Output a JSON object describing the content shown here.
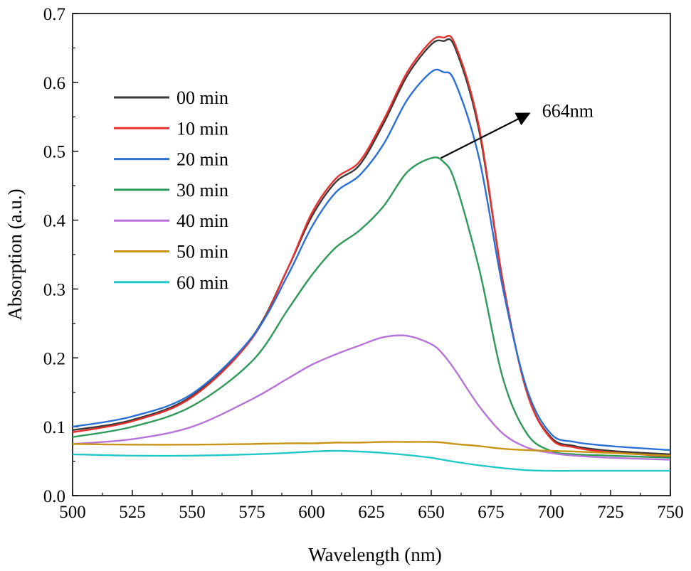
{
  "chart_data": {
    "type": "line",
    "title": "",
    "xlabel": "Wavelength (nm)",
    "ylabel": "Absorption (a.u.)",
    "xlim": [
      500,
      750
    ],
    "ylim": [
      0.0,
      0.7
    ],
    "x_ticks": [
      500,
      525,
      550,
      575,
      600,
      625,
      650,
      675,
      700,
      725,
      750
    ],
    "x_tick_labels": [
      "500",
      "525",
      "550",
      "575",
      "600",
      "625",
      "650",
      "675",
      "700",
      "725",
      "750"
    ],
    "y_ticks": [
      0.0,
      0.1,
      0.2,
      0.3,
      0.4,
      0.5,
      0.6,
      0.7
    ],
    "y_tick_labels": [
      "0.0",
      "0.1",
      "0.2",
      "0.3",
      "0.4",
      "0.5",
      "0.6",
      "0.7"
    ],
    "grid": false,
    "legend_position": "top-left",
    "x": [
      500,
      525,
      550,
      575,
      590,
      600,
      610,
      620,
      630,
      640,
      650,
      655,
      660,
      670,
      680,
      690,
      700,
      710,
      725,
      750
    ],
    "series": [
      {
        "name": "00 min",
        "color": "#3a3a3a",
        "values": [
          0.095,
          0.11,
          0.145,
          0.23,
          0.33,
          0.405,
          0.455,
          0.48,
          0.54,
          0.61,
          0.655,
          0.66,
          0.65,
          0.53,
          0.31,
          0.15,
          0.085,
          0.072,
          0.065,
          0.06
        ]
      },
      {
        "name": "10 min",
        "color": "#e8302c",
        "values": [
          0.092,
          0.108,
          0.143,
          0.228,
          0.33,
          0.41,
          0.46,
          0.485,
          0.545,
          0.615,
          0.66,
          0.665,
          0.655,
          0.535,
          0.31,
          0.15,
          0.083,
          0.07,
          0.063,
          0.057
        ]
      },
      {
        "name": "20 min",
        "color": "#2b6fd8",
        "values": [
          0.1,
          0.115,
          0.148,
          0.23,
          0.32,
          0.39,
          0.44,
          0.465,
          0.51,
          0.575,
          0.615,
          0.615,
          0.6,
          0.49,
          0.3,
          0.155,
          0.09,
          0.078,
          0.072,
          0.066
        ]
      },
      {
        "name": "30 min",
        "color": "#2e9a5a",
        "values": [
          0.085,
          0.1,
          0.13,
          0.195,
          0.27,
          0.32,
          0.36,
          0.385,
          0.42,
          0.47,
          0.49,
          0.485,
          0.455,
          0.33,
          0.17,
          0.09,
          0.065,
          0.06,
          0.058,
          0.055
        ]
      },
      {
        "name": "40 min",
        "color": "#b774d8",
        "values": [
          0.075,
          0.082,
          0.1,
          0.14,
          0.17,
          0.19,
          0.205,
          0.218,
          0.23,
          0.232,
          0.22,
          0.205,
          0.182,
          0.13,
          0.09,
          0.07,
          0.062,
          0.058,
          0.055,
          0.052
        ]
      },
      {
        "name": "50 min",
        "color": "#c89412",
        "values": [
          0.075,
          0.074,
          0.074,
          0.075,
          0.076,
          0.076,
          0.077,
          0.077,
          0.078,
          0.078,
          0.078,
          0.077,
          0.075,
          0.072,
          0.068,
          0.066,
          0.065,
          0.064,
          0.062,
          0.058
        ]
      },
      {
        "name": "60 min",
        "color": "#22c8c8",
        "values": [
          0.06,
          0.058,
          0.058,
          0.06,
          0.062,
          0.064,
          0.065,
          0.064,
          0.062,
          0.059,
          0.055,
          0.052,
          0.049,
          0.044,
          0.04,
          0.037,
          0.036,
          0.036,
          0.036,
          0.036
        ]
      }
    ],
    "annotation": {
      "label": "664nm",
      "from_x": 654,
      "from_y": 0.49,
      "to_x": 691,
      "to_y": 0.555
    }
  }
}
